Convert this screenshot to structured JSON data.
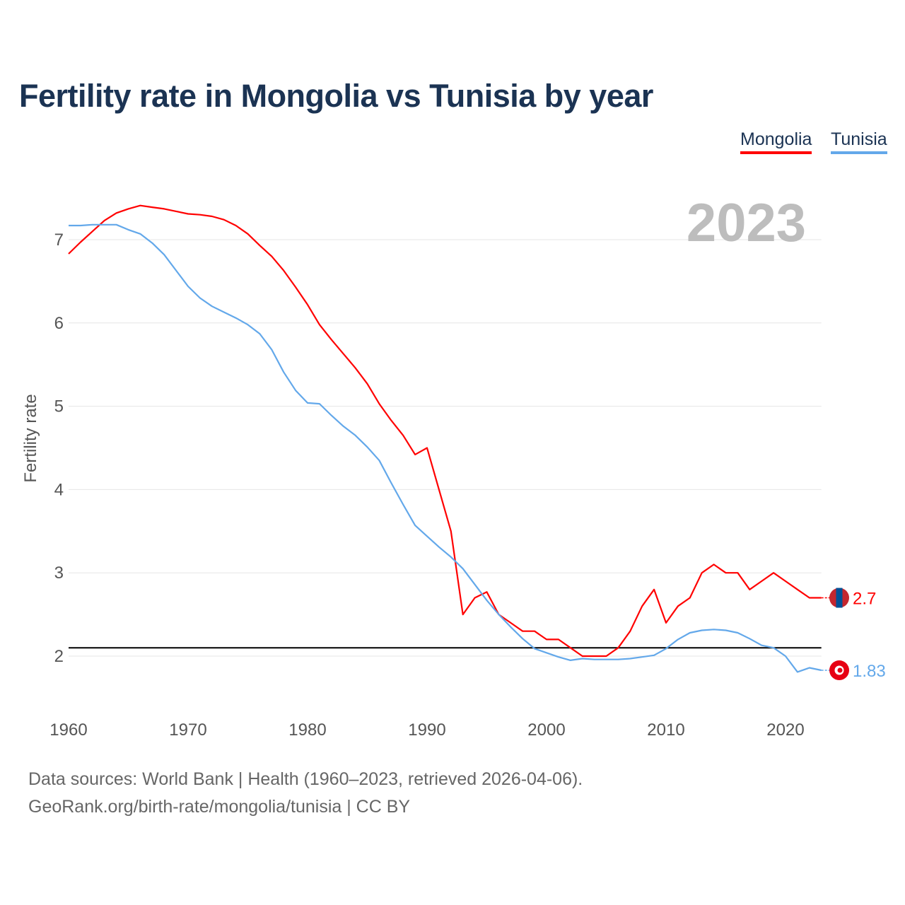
{
  "chart_data": {
    "type": "line",
    "title": "Fertility rate in Mongolia vs Tunisia by year",
    "xlabel": "",
    "ylabel": "Fertility rate",
    "xlim": [
      1960,
      2023
    ],
    "ylim": [
      1.5,
      7.5
    ],
    "grid": true,
    "legend_position": "top-right",
    "x_ticks": [
      "1960",
      "1970",
      "1980",
      "1990",
      "2000",
      "2010",
      "2020"
    ],
    "y_ticks": [
      "2",
      "3",
      "4",
      "5",
      "6",
      "7"
    ],
    "year_label": "2023",
    "reference_line": 2.1,
    "x": [
      1960,
      1961,
      1962,
      1963,
      1964,
      1965,
      1966,
      1967,
      1968,
      1969,
      1970,
      1971,
      1972,
      1973,
      1974,
      1975,
      1976,
      1977,
      1978,
      1979,
      1980,
      1981,
      1982,
      1983,
      1984,
      1985,
      1986,
      1987,
      1988,
      1989,
      1990,
      1991,
      1992,
      1993,
      1994,
      1995,
      1996,
      1997,
      1998,
      1999,
      2000,
      2001,
      2002,
      2003,
      2004,
      2005,
      2006,
      2007,
      2008,
      2009,
      2010,
      2011,
      2012,
      2013,
      2014,
      2015,
      2016,
      2017,
      2018,
      2019,
      2020,
      2021,
      2022,
      2023
    ],
    "series": [
      {
        "name": "Mongolia",
        "color": "#ff0000",
        "end_label": "2.7",
        "values": [
          6.83,
          6.97,
          7.1,
          7.23,
          7.32,
          7.37,
          7.41,
          7.39,
          7.37,
          7.34,
          7.31,
          7.3,
          7.28,
          7.24,
          7.17,
          7.07,
          6.93,
          6.8,
          6.63,
          6.43,
          6.22,
          5.98,
          5.8,
          5.63,
          5.46,
          5.27,
          5.03,
          4.83,
          4.65,
          4.42,
          4.5,
          4.0,
          3.5,
          2.5,
          2.7,
          2.77,
          2.5,
          2.4,
          2.3,
          2.3,
          2.2,
          2.2,
          2.1,
          2.0,
          2.0,
          2.0,
          2.1,
          2.3,
          2.6,
          2.8,
          2.4,
          2.6,
          2.7,
          3.0,
          3.1,
          3.0,
          3.0,
          2.8,
          2.9,
          3.0,
          2.9,
          2.8,
          2.7,
          2.7
        ]
      },
      {
        "name": "Tunisia",
        "color": "#63a8ea",
        "end_label": "1.83",
        "values": [
          7.17,
          7.17,
          7.18,
          7.18,
          7.18,
          7.12,
          7.07,
          6.96,
          6.82,
          6.63,
          6.44,
          6.3,
          6.2,
          6.13,
          6.06,
          5.98,
          5.87,
          5.68,
          5.41,
          5.19,
          5.04,
          5.03,
          4.89,
          4.76,
          4.65,
          4.51,
          4.35,
          4.08,
          3.82,
          3.57,
          3.44,
          3.31,
          3.19,
          3.05,
          2.86,
          2.67,
          2.5,
          2.35,
          2.21,
          2.09,
          2.04,
          1.99,
          1.95,
          1.97,
          1.96,
          1.96,
          1.96,
          1.97,
          1.99,
          2.01,
          2.09,
          2.2,
          2.28,
          2.31,
          2.32,
          2.31,
          2.28,
          2.21,
          2.13,
          2.1,
          2.0,
          1.81,
          1.86,
          1.83
        ]
      }
    ]
  },
  "source": {
    "line1": "Data sources: World Bank | Health (1960–2023, retrieved 2026-04-06).",
    "line2": "GeoRank.org/birth-rate/mongolia/tunisia | CC BY"
  }
}
